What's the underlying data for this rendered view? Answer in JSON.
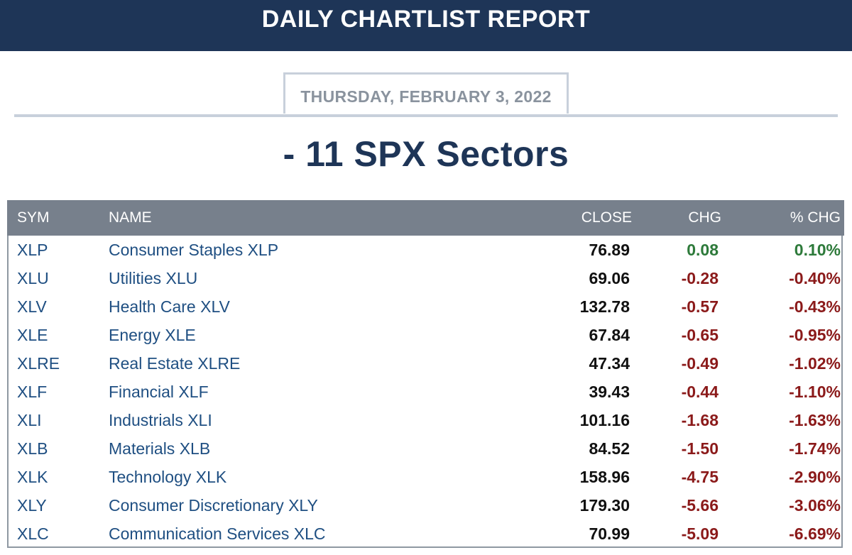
{
  "header": {
    "title": "DAILY CHARTLIST REPORT"
  },
  "date": {
    "label": "THURSDAY, FEBRUARY 3, 2022"
  },
  "section": {
    "title": "- 11 SPX Sectors"
  },
  "colors": {
    "header_bg": "#1e3557",
    "table_header_bg": "#77808c",
    "positive": "#2d7a3a",
    "negative": "#8b1a1a",
    "link": "#1f4f82"
  },
  "table": {
    "headers": {
      "sym": "SYM",
      "name": "NAME",
      "close": "CLOSE",
      "chg": "CHG",
      "pct": "% CHG"
    },
    "rows": [
      {
        "sym": "XLP",
        "name": "Consumer Staples XLP",
        "close": "76.89",
        "chg": "0.08",
        "pct": "0.10%",
        "direction": "up"
      },
      {
        "sym": "XLU",
        "name": "Utilities XLU",
        "close": "69.06",
        "chg": "-0.28",
        "pct": "-0.40%",
        "direction": "down"
      },
      {
        "sym": "XLV",
        "name": "Health Care XLV",
        "close": "132.78",
        "chg": "-0.57",
        "pct": "-0.43%",
        "direction": "down"
      },
      {
        "sym": "XLE",
        "name": "Energy XLE",
        "close": "67.84",
        "chg": "-0.65",
        "pct": "-0.95%",
        "direction": "down"
      },
      {
        "sym": "XLRE",
        "name": "Real Estate XLRE",
        "close": "47.34",
        "chg": "-0.49",
        "pct": "-1.02%",
        "direction": "down"
      },
      {
        "sym": "XLF",
        "name": "Financial XLF",
        "close": "39.43",
        "chg": "-0.44",
        "pct": "-1.10%",
        "direction": "down"
      },
      {
        "sym": "XLI",
        "name": "Industrials XLI",
        "close": "101.16",
        "chg": "-1.68",
        "pct": "-1.63%",
        "direction": "down"
      },
      {
        "sym": "XLB",
        "name": "Materials XLB",
        "close": "84.52",
        "chg": "-1.50",
        "pct": "-1.74%",
        "direction": "down"
      },
      {
        "sym": "XLK",
        "name": "Technology XLK",
        "close": "158.96",
        "chg": "-4.75",
        "pct": "-2.90%",
        "direction": "down"
      },
      {
        "sym": "XLY",
        "name": "Consumer Discretionary XLY",
        "close": "179.30",
        "chg": "-5.66",
        "pct": "-3.06%",
        "direction": "down"
      },
      {
        "sym": "XLC",
        "name": "Communication Services XLC",
        "close": "70.99",
        "chg": "-5.09",
        "pct": "-6.69%",
        "direction": "down"
      }
    ]
  }
}
